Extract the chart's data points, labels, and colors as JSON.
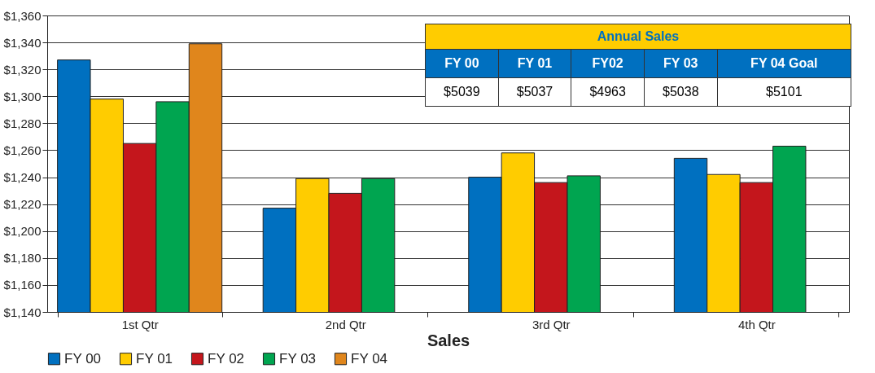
{
  "chart_data": {
    "type": "bar",
    "xlabel": "Sales",
    "categories": [
      "1st Qtr",
      "2nd Qtr",
      "3rd Qtr",
      "4th Qtr"
    ],
    "series": [
      {
        "name": "FY 00",
        "color": "#0070c0",
        "values": [
          1327,
          1217,
          1240,
          1254
        ]
      },
      {
        "name": "FY 01",
        "color": "#ffcc00",
        "values": [
          1298,
          1239,
          1258,
          1242
        ]
      },
      {
        "name": "FY 02",
        "color": "#c4161c",
        "values": [
          1265,
          1228,
          1236,
          1236
        ]
      },
      {
        "name": "FY 03",
        "color": "#00a550",
        "values": [
          1296,
          1239,
          1241,
          1263
        ]
      },
      {
        "name": "FY 04",
        "color": "#e0861c",
        "values": [
          1339,
          null,
          null,
          null
        ]
      }
    ],
    "ylim": [
      1140,
      1360
    ],
    "yticks": [
      {
        "value": 1140,
        "label": "$1,140"
      },
      {
        "value": 1160,
        "label": "$1,160"
      },
      {
        "value": 1180,
        "label": "$1,180"
      },
      {
        "value": 1200,
        "label": "$1,200"
      },
      {
        "value": 1220,
        "label": "$1,220"
      },
      {
        "value": 1240,
        "label": "$1,240"
      },
      {
        "value": 1260,
        "label": "$1,260"
      },
      {
        "value": 1280,
        "label": "$1,280"
      },
      {
        "value": 1300,
        "label": "$1,300"
      },
      {
        "value": 1320,
        "label": "$1,320"
      },
      {
        "value": 1340,
        "label": "$1,340"
      },
      {
        "value": 1360,
        "label": "$1,360"
      }
    ],
    "grid": "y",
    "legend": "bottom",
    "annotations": [
      "Annual Sales",
      "FY 00",
      "FY 01",
      "FY02",
      "FY 03",
      "FY 04 Goal",
      "$5039",
      "$5037",
      "$4963",
      "$5038",
      "$5101"
    ]
  }
}
